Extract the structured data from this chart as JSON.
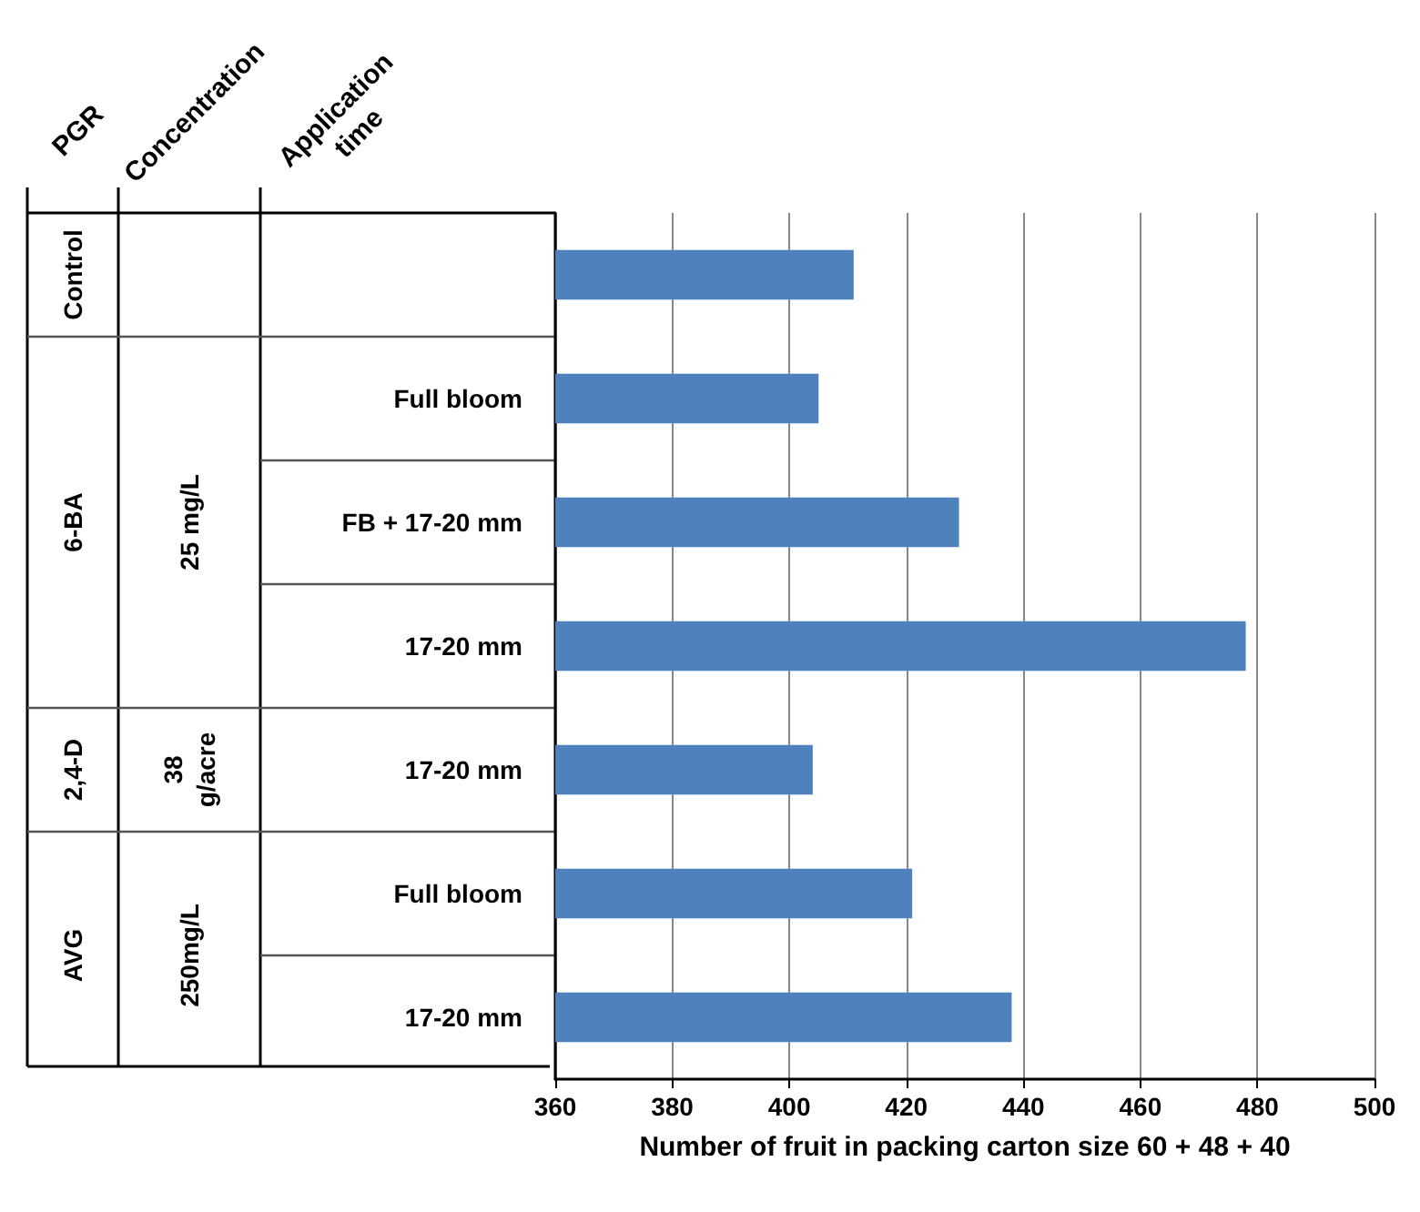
{
  "chart_data": {
    "type": "bar",
    "orientation": "horizontal",
    "categories": [
      null,
      "Full bloom",
      "FB + 17-20 mm",
      "17-20 mm",
      "17-20 mm",
      "Full bloom",
      "17-20 mm"
    ],
    "values": [
      411,
      405,
      429,
      478,
      404,
      421,
      438
    ],
    "color": "#4f81bd",
    "xlim": [
      360,
      500
    ],
    "xticks": [
      360,
      380,
      400,
      420,
      440,
      460,
      480,
      500
    ],
    "xlabel": "Number of fruit in packing carton size 60 + 48 + 40",
    "grid": "x",
    "annotations": [
      "PGR",
      "Concentration",
      "Application\ntime",
      "Control",
      "6-BA",
      "2,4-D",
      "AVG",
      "25 mg/L",
      "38\ng/acre",
      "250mg/L"
    ]
  }
}
